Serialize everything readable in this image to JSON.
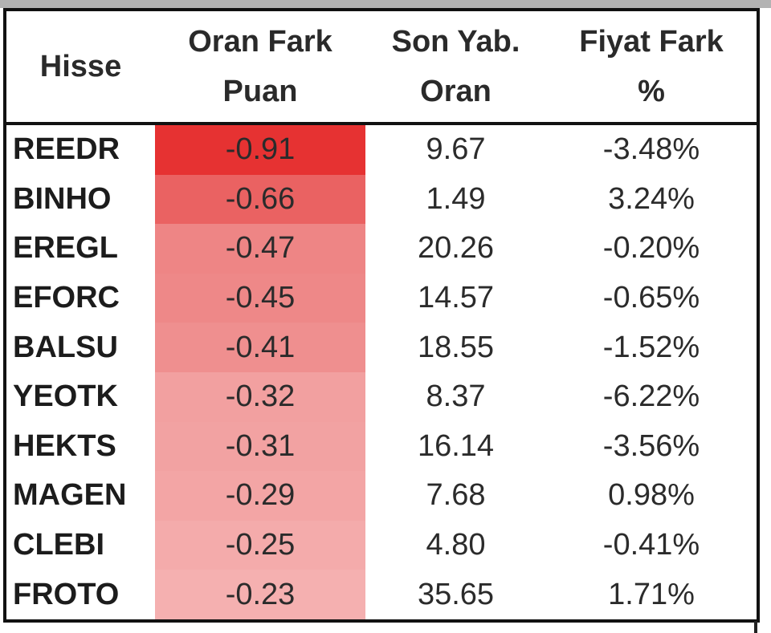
{
  "table": {
    "headers": {
      "stock": "Hisse",
      "ratio_diff_line1": "Oran Fark",
      "ratio_diff_line2": "Puan",
      "last_ratio_line1": "Son Yab.",
      "last_ratio_line2": "Oran",
      "price_diff_line1": "Fiyat Fark",
      "price_diff_line2": "%"
    },
    "rows": [
      {
        "stock": "REEDR",
        "ratio_diff": "-0.91",
        "last_ratio": "9.67",
        "price_diff": "-3.48%",
        "heat": "#e63232"
      },
      {
        "stock": "BINHO",
        "ratio_diff": "-0.66",
        "last_ratio": "1.49",
        "price_diff": "3.24%",
        "heat": "#ea6262"
      },
      {
        "stock": "EREGL",
        "ratio_diff": "-0.47",
        "last_ratio": "20.26",
        "price_diff": "-0.20%",
        "heat": "#ee8585"
      },
      {
        "stock": "EFORC",
        "ratio_diff": "-0.45",
        "last_ratio": "14.57",
        "price_diff": "-0.65%",
        "heat": "#ee8888"
      },
      {
        "stock": "BALSU",
        "ratio_diff": "-0.41",
        "last_ratio": "18.55",
        "price_diff": "-1.52%",
        "heat": "#ef8f8f"
      },
      {
        "stock": "YEOTK",
        "ratio_diff": "-0.32",
        "last_ratio": "8.37",
        "price_diff": "-6.22%",
        "heat": "#f2a0a0"
      },
      {
        "stock": "HEKTS",
        "ratio_diff": "-0.31",
        "last_ratio": "16.14",
        "price_diff": "-3.56%",
        "heat": "#f2a2a2"
      },
      {
        "stock": "MAGEN",
        "ratio_diff": "-0.29",
        "last_ratio": "7.68",
        "price_diff": "0.98%",
        "heat": "#f3a5a5"
      },
      {
        "stock": "CLEBI",
        "ratio_diff": "-0.25",
        "last_ratio": "4.80",
        "price_diff": "-0.41%",
        "heat": "#f4abab"
      },
      {
        "stock": "FROTO",
        "ratio_diff": "-0.23",
        "last_ratio": "35.65",
        "price_diff": "1.71%",
        "heat": "#f5b0b0"
      }
    ]
  }
}
